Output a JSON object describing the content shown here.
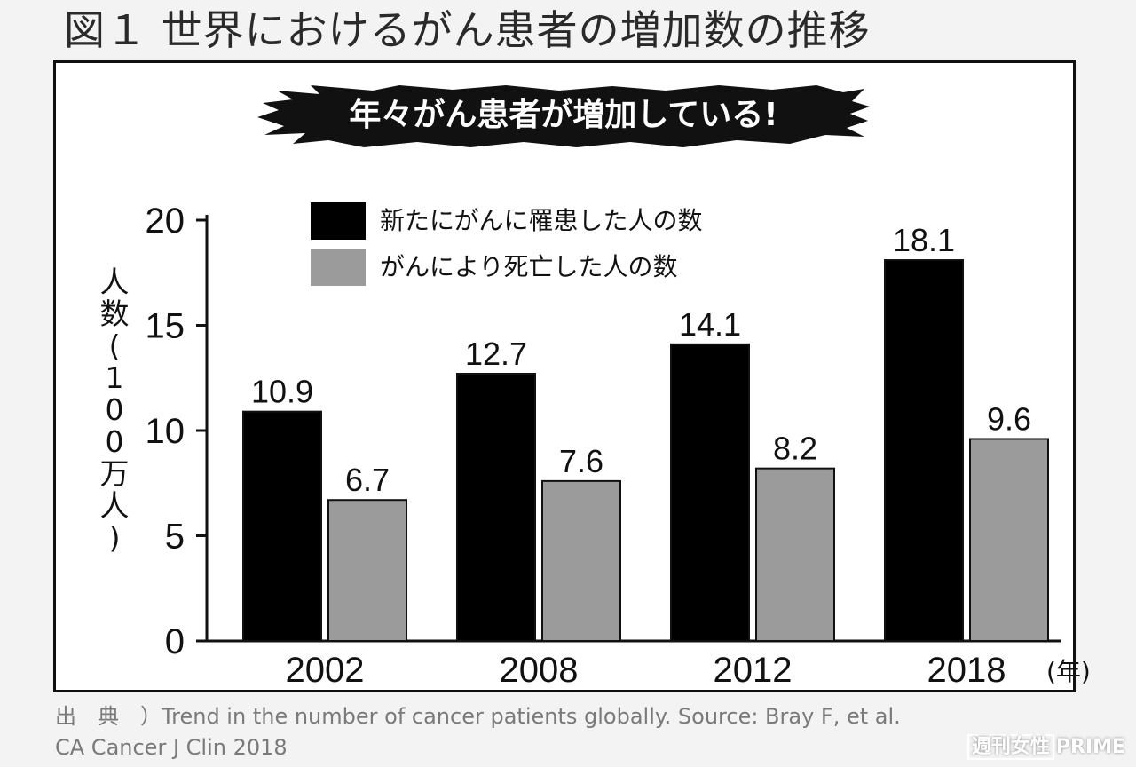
{
  "title": "図１ 世界におけるがん患者の増加数の推移",
  "banner": "年々がん患者が増加している!",
  "colors": {
    "new_cases": "#000000",
    "deaths": "#9b9b9b",
    "banner_bg": "#111111"
  },
  "chart_data": {
    "type": "bar",
    "categories": [
      "2002",
      "2008",
      "2012",
      "2018"
    ],
    "xunit": "(年)",
    "ylabel": "人数(100万人)",
    "ylim": [
      0,
      20
    ],
    "yticks": [
      0,
      5,
      10,
      15,
      20
    ],
    "legend_position": "top-left",
    "grid": false,
    "series": [
      {
        "name": "新たにがんに罹患した人の数",
        "values": [
          10.9,
          12.7,
          14.1,
          18.1
        ]
      },
      {
        "name": "がんにより死亡した人の数",
        "values": [
          6.7,
          7.6,
          8.2,
          9.6
        ]
      }
    ]
  },
  "source": {
    "line1": "出　典　）Trend in the number of cancer patients globally. Source: Bray F, et al.",
    "line2": "CA Cancer J Clin 2018"
  },
  "watermark": {
    "box": "週刊女性",
    "text": "PRIME"
  }
}
